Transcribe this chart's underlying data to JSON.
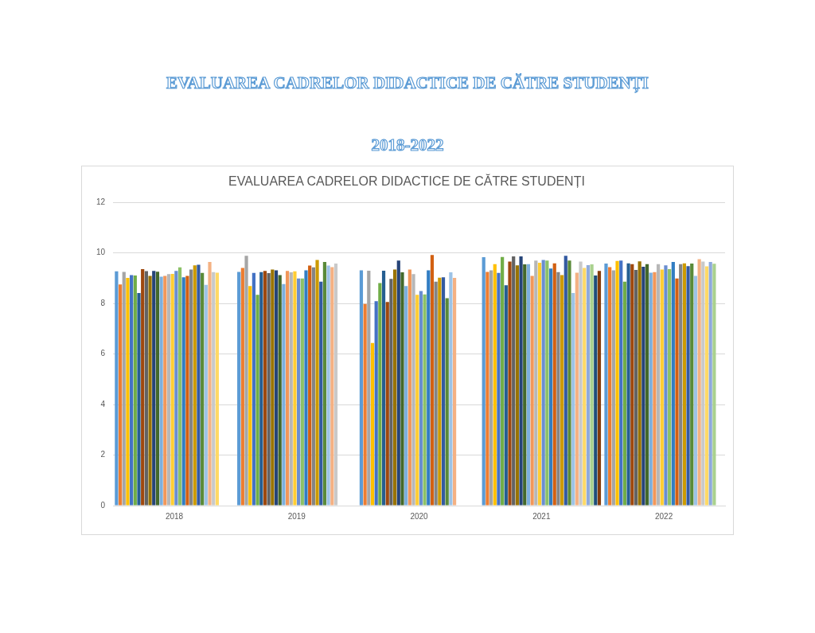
{
  "chart_data": {
    "type": "bar",
    "title": "EVALUAREA CADRELOR DIDACTICE DE CĂTRE STUDENȚI",
    "annotations": [
      "EVALUAREA CADRELOR DIDACTICE DE CĂTRE STUDENȚI",
      "2018-2022"
    ],
    "categories": [
      "2018",
      "2019",
      "2020",
      "2021",
      "2022"
    ],
    "ylim": [
      0,
      12
    ],
    "yticks": [
      0,
      2,
      4,
      6,
      8,
      10,
      12
    ],
    "grid": "y",
    "legend": false,
    "series": [
      {
        "color": "#5b9bd5",
        "values": [
          9.27,
          9.25,
          9.31,
          9.83,
          9.58
        ]
      },
      {
        "color": "#ed7d31",
        "values": [
          8.75,
          9.41,
          7.98,
          9.25,
          9.44
        ]
      },
      {
        "color": "#a5a5a5",
        "values": [
          9.25,
          9.89,
          9.3,
          9.31,
          9.31
        ]
      },
      {
        "color": "#ffc000",
        "values": [
          9.01,
          8.69,
          6.44,
          9.56,
          9.68
        ]
      },
      {
        "color": "#4472c4",
        "values": [
          9.12,
          9.21,
          8.09,
          9.21,
          9.7
        ]
      },
      {
        "color": "#70ad47",
        "values": [
          9.11,
          8.34,
          8.81,
          9.84,
          8.86
        ]
      },
      {
        "color": "#255e91",
        "values": [
          8.41,
          9.24,
          9.3,
          8.72,
          9.59
        ]
      },
      {
        "color": "#9e480e",
        "values": [
          9.36,
          9.29,
          8.06,
          9.66,
          9.56
        ]
      },
      {
        "color": "#636363",
        "values": [
          9.28,
          9.2,
          8.97,
          9.86,
          9.33
        ]
      },
      {
        "color": "#997300",
        "values": [
          9.09,
          9.34,
          9.34,
          9.51,
          9.67
        ]
      },
      {
        "color": "#264478",
        "values": [
          9.29,
          9.31,
          9.7,
          9.86,
          9.45
        ]
      },
      {
        "color": "#43682b",
        "values": [
          9.26,
          9.12,
          9.23,
          9.55,
          9.56
        ]
      },
      {
        "color": "#7cafdd",
        "values": [
          9.06,
          8.77,
          8.69,
          9.56,
          9.22
        ]
      },
      {
        "color": "#f1975a",
        "values": [
          9.09,
          9.29,
          9.34,
          9.09,
          9.24
        ]
      },
      {
        "color": "#b7b7b7",
        "values": [
          9.16,
          9.23,
          9.16,
          9.7,
          9.56
        ]
      },
      {
        "color": "#ffcd33",
        "values": [
          9.17,
          9.27,
          8.34,
          9.61,
          9.34
        ]
      },
      {
        "color": "#698ed0",
        "values": [
          9.29,
          8.99,
          8.49,
          9.72,
          9.51
        ]
      },
      {
        "color": "#8cc168",
        "values": [
          9.43,
          8.99,
          8.36,
          9.7,
          9.36
        ]
      },
      {
        "color": "#327dc2",
        "values": [
          9.04,
          9.31,
          9.31,
          9.38,
          9.64
        ]
      },
      {
        "color": "#d26012",
        "values": [
          9.09,
          9.5,
          9.92,
          9.59,
          8.99
        ]
      },
      {
        "color": "#848484",
        "values": [
          9.34,
          9.43,
          8.86,
          9.24,
          9.56
        ]
      },
      {
        "color": "#cc9a00",
        "values": [
          9.51,
          9.72,
          9.02,
          9.12,
          9.59
        ]
      },
      {
        "color": "#335aa1",
        "values": [
          9.53,
          8.86,
          9.04,
          9.89,
          9.48
        ]
      },
      {
        "color": "#5a8a39",
        "values": [
          9.21,
          9.64,
          8.21,
          9.7,
          9.58
        ]
      },
      {
        "color": "#9dc3e6",
        "values": [
          8.74,
          9.5,
          9.23,
          8.41,
          9.09
        ]
      },
      {
        "color": "#f4b183",
        "values": [
          9.64,
          9.44,
          9.01,
          9.22,
          9.75
        ]
      },
      {
        "color": "#c9c9c9",
        "values": [
          9.24,
          9.58,
          null,
          9.66,
          9.66
        ]
      },
      {
        "color": "#ffd966",
        "values": [
          9.22,
          null,
          null,
          9.41,
          9.47
        ]
      },
      {
        "color": "#8faadc",
        "values": [
          null,
          null,
          null,
          9.52,
          9.64
        ]
      },
      {
        "color": "#a9d18e",
        "values": [
          null,
          null,
          null,
          9.55,
          9.57
        ]
      },
      {
        "color": "#1f4e79",
        "values": [
          null,
          null,
          null,
          9.11,
          null
        ]
      },
      {
        "color": "#843c0c",
        "values": [
          null,
          null,
          null,
          9.29,
          null
        ]
      }
    ]
  }
}
